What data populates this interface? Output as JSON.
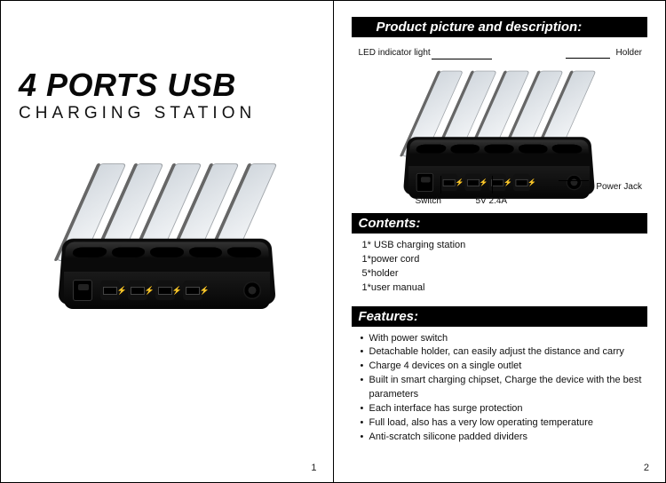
{
  "colors": {
    "bar_bg": "#000000",
    "bar_text": "#ffffff",
    "body_text": "#111111",
    "product_body": "#0a0a0a",
    "divider_tint": "#b8c0c8"
  },
  "typography": {
    "title_main_fontsize": 36,
    "title_main_weight": 900,
    "title_sub_fontsize": 19,
    "title_sub_letter_spacing": 5,
    "section_bar_fontsize": 15,
    "body_fontsize": 11,
    "callout_fontsize": 10
  },
  "left_page": {
    "title_main": "4 PORTS USB",
    "title_sub": "CHARGING  STATION",
    "page_number": "1"
  },
  "right_page": {
    "section_picture_title": "Product picture and description:",
    "callouts": {
      "led": "LED indicator light",
      "holder": "Holder",
      "switch": "Switch",
      "ports": "5V 2.4A",
      "power_jack": "Power Jack"
    },
    "section_contents_title": "Contents:",
    "contents": [
      "1* USB charging station",
      "1*power cord",
      "5*holder",
      "1*user manual"
    ],
    "section_features_title": "Features:",
    "features": [
      "With power switch",
      "Detachable holder, can easily adjust the distance and carry",
      "Charge 4 devices on a single outlet",
      "Built in smart charging chipset, Charge the device with the best parameters",
      "Each interface has surge protection",
      "Full load, also has a very low operating temperature",
      "Anti-scratch silicone padded dividers"
    ],
    "page_number": "2"
  }
}
